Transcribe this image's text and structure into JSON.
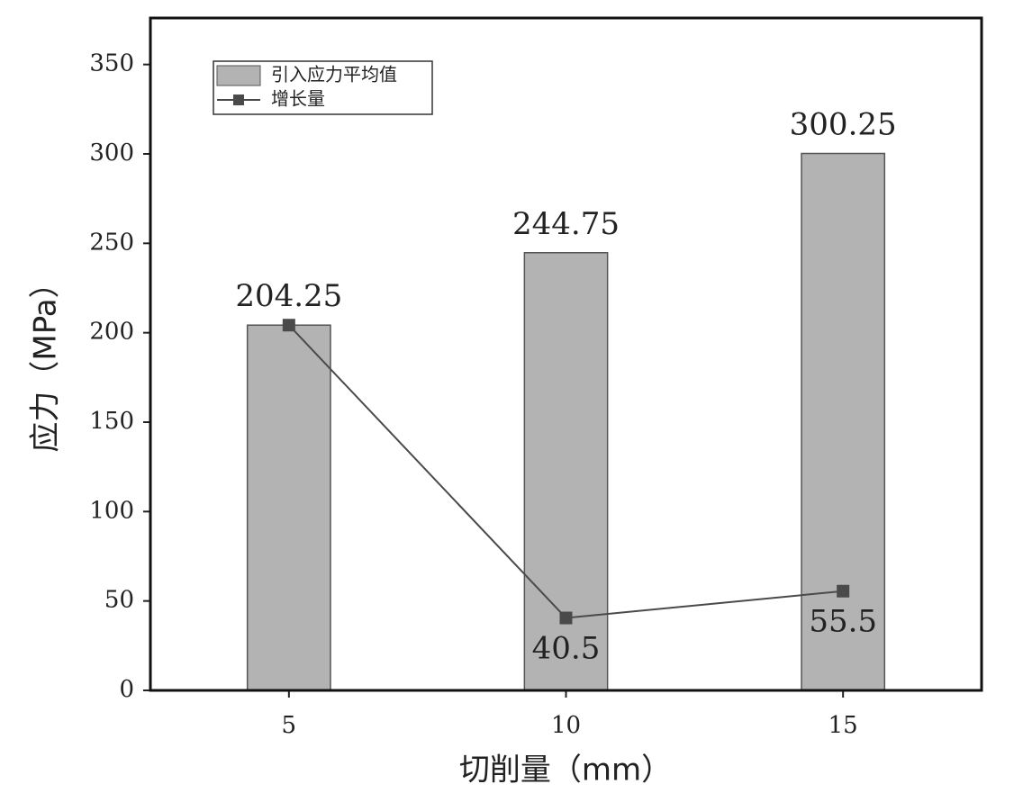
{
  "chart_data": {
    "type": "bar",
    "x_label": "切削量（mm）",
    "y_label": "应力（MPa）",
    "categories": [
      "5",
      "10",
      "15"
    ],
    "series": [
      {
        "name": "引入应力平均值",
        "kind": "bar",
        "color": "#b3b3b3",
        "values": [
          204.25,
          244.75,
          300.25
        ]
      },
      {
        "name": "增长量",
        "kind": "line",
        "color": "#4a4a4a",
        "values": [
          204.25,
          40.5,
          55.5
        ],
        "show_labels": [
          false,
          true,
          true
        ]
      }
    ],
    "ylim": [
      0,
      376
    ],
    "yticks": [
      0,
      50,
      100,
      150,
      200,
      250,
      300,
      350
    ],
    "legend": "upper-left"
  }
}
